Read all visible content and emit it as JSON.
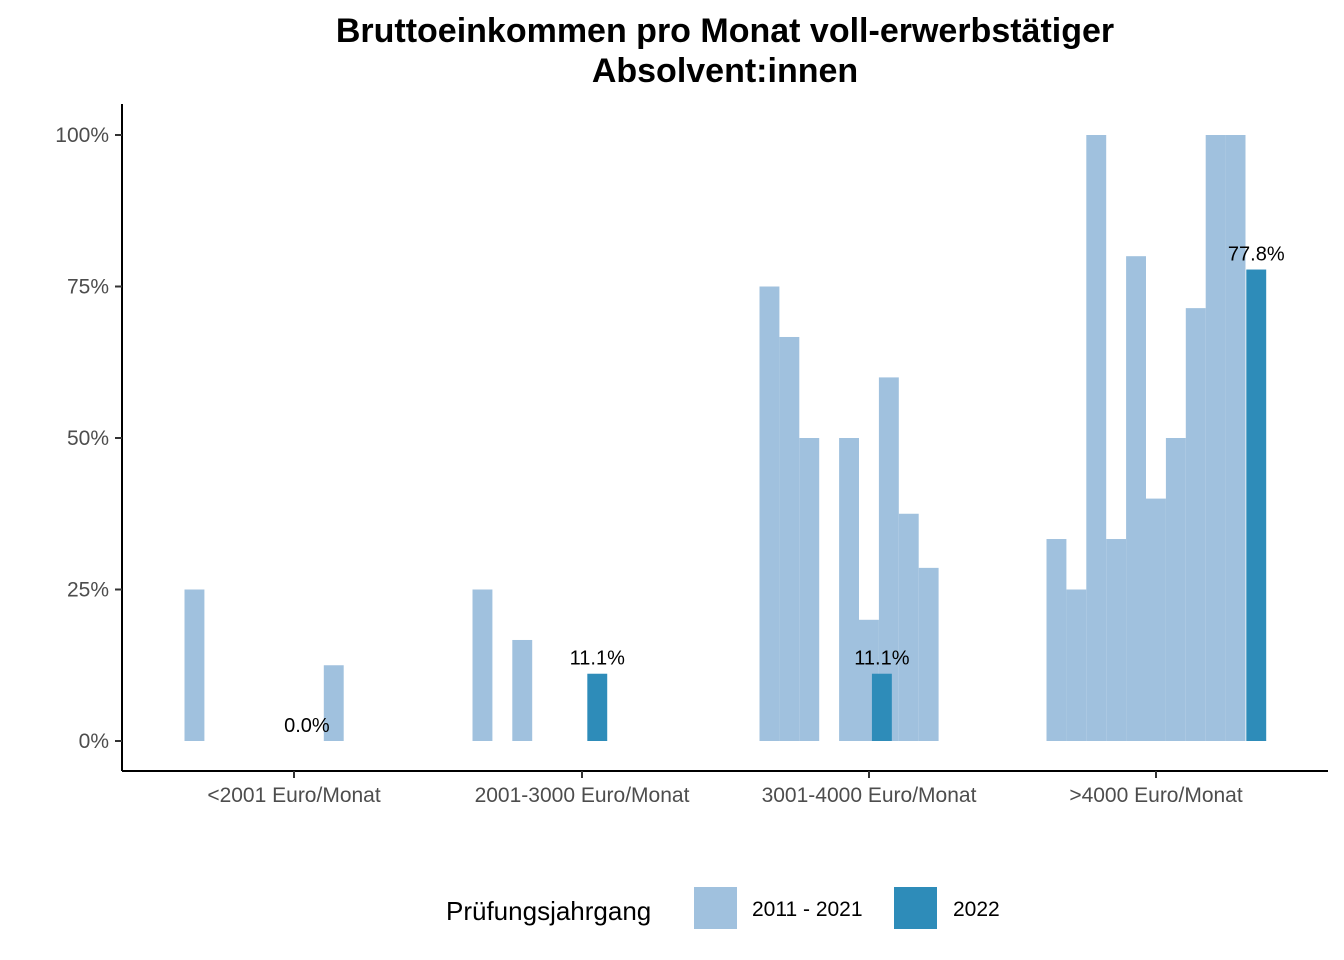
{
  "chart_data": {
    "type": "bar",
    "title": [
      "Bruttoeinkommen pro Monat voll-erwerbstätiger",
      "Absolvent:innen"
    ],
    "xlabel": "",
    "ylabel": "",
    "ylim": [
      0,
      1.05
    ],
    "y_ticks": [
      {
        "value": 0,
        "label": "0%"
      },
      {
        "value": 0.25,
        "label": "25%"
      },
      {
        "value": 0.5,
        "label": "50%"
      },
      {
        "value": 0.75,
        "label": "75%"
      },
      {
        "value": 1.0,
        "label": "100%"
      }
    ],
    "categories": [
      "<2001 Euro/Monat",
      "2001-3000 Euro/Monat",
      "3001-4000 Euro/Monat",
      ">4000 Euro/Monat"
    ],
    "series": [
      {
        "name": "2011 - 2021",
        "color": "#a0c1de",
        "values_by_category": [
          [
            0.25,
            null,
            null,
            null,
            null,
            null,
            null,
            0.125,
            null,
            null,
            null,
            null
          ],
          [
            0.25,
            null,
            0.1667,
            null,
            null,
            null,
            null,
            null,
            null,
            null,
            null,
            null
          ],
          [
            0.75,
            0.6667,
            0.5,
            null,
            0.5,
            0.2,
            0.6,
            0.375,
            0.2857,
            null,
            null,
            null
          ],
          [
            0.3333,
            0.25,
            1.0,
            0.3333,
            0.8,
            0.4,
            0.5,
            0.7143,
            1.0,
            1.0,
            null,
            null
          ]
        ]
      },
      {
        "name": "2022",
        "color": "#2e8cb9",
        "values": [
          0.0,
          0.111,
          0.111,
          0.778
        ],
        "labels": [
          "0.0%",
          "11.1%",
          "11.1%",
          "77.8%"
        ]
      }
    ],
    "legend": {
      "title": "Prüfungsjahrgang",
      "position": "bottom",
      "entries": [
        "2011 - 2021",
        "2022"
      ]
    },
    "grid": false
  }
}
